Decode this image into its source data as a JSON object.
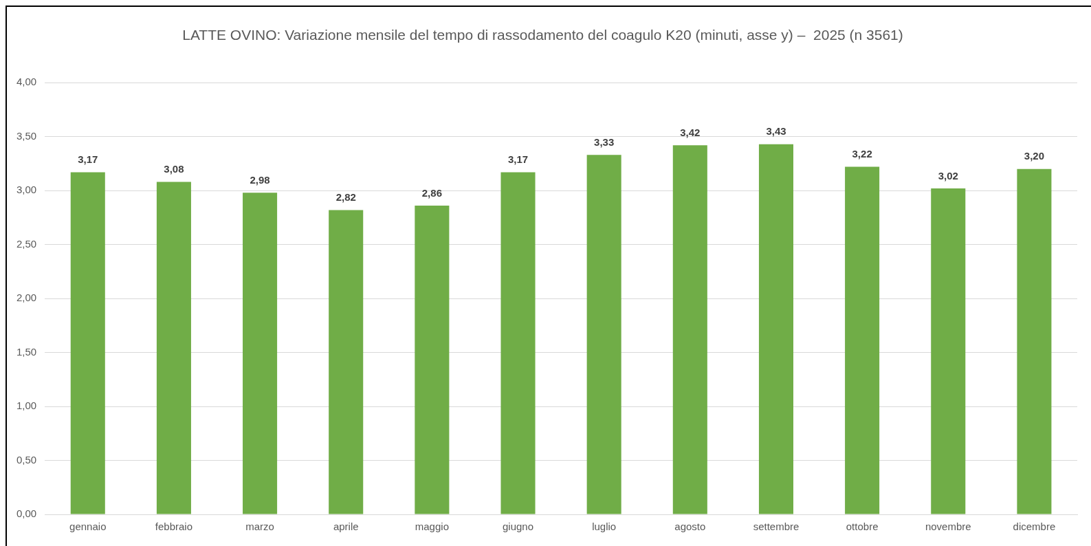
{
  "chart_data": {
    "type": "bar",
    "title": "LATTE OVINO: Variazione mensile del tempo di rassodamento del coagulo K20 (minuti, asse y) –  2025 (n 3561)",
    "categories": [
      "gennaio",
      "febbraio",
      "marzo",
      "aprile",
      "maggio",
      "giugno",
      "luglio",
      "agosto",
      "settembre",
      "ottobre",
      "novembre",
      "dicembre"
    ],
    "values": [
      3.17,
      3.08,
      2.98,
      2.82,
      2.86,
      3.17,
      3.33,
      3.42,
      3.43,
      3.22,
      3.02,
      3.2
    ],
    "value_labels": [
      "3,17",
      "3,08",
      "2,98",
      "2,82",
      "2,86",
      "3,17",
      "3,33",
      "3,42",
      "3,43",
      "3,22",
      "3,02",
      "3,20"
    ],
    "color": "#70ad47",
    "ylim": [
      0,
      4
    ],
    "yticks": [
      {
        "value": 0,
        "label": "0,00"
      },
      {
        "value": 0.5,
        "label": "0,50"
      },
      {
        "value": 1,
        "label": "1,00"
      },
      {
        "value": 1.5,
        "label": "1,50"
      },
      {
        "value": 2,
        "label": "2,00"
      },
      {
        "value": 2.5,
        "label": "2,50"
      },
      {
        "value": 3,
        "label": "3,00"
      },
      {
        "value": 3.5,
        "label": "3,50"
      },
      {
        "value": 4,
        "label": "4,00"
      }
    ],
    "grid": "y",
    "legend": false
  }
}
